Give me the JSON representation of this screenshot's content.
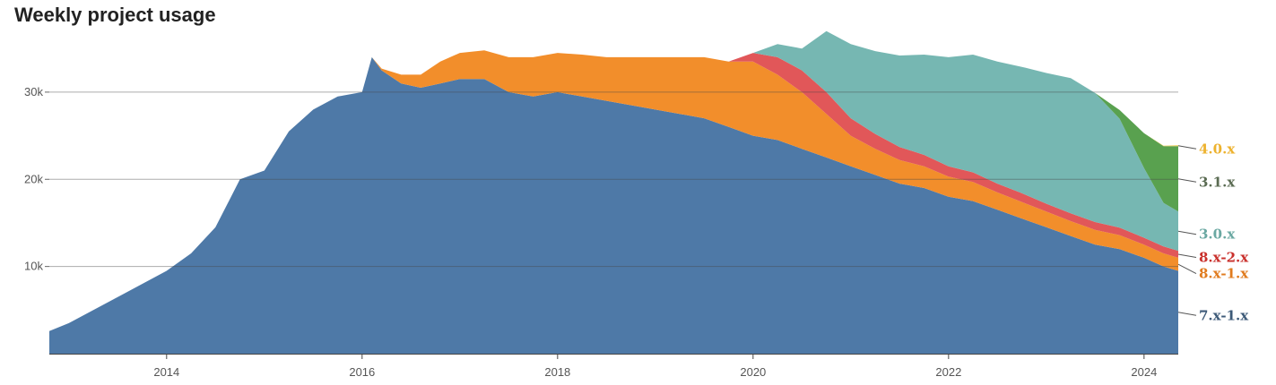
{
  "chart_data": {
    "type": "area",
    "stacked": true,
    "title": "Weekly project usage",
    "xlabel": "",
    "ylabel": "",
    "xlim": [
      2012.8,
      2024.35
    ],
    "ylim": [
      0,
      38000
    ],
    "grid": true,
    "legend_placement": "right (labels at series ends)",
    "x_ticks": [
      2014,
      2016,
      2018,
      2020,
      2022,
      2024
    ],
    "x_tick_labels": [
      "2014",
      "2016",
      "2018",
      "2020",
      "2022",
      "2024"
    ],
    "y_ticks": [
      10000,
      20000,
      30000
    ],
    "y_tick_labels": [
      "10k",
      "20k",
      "30k"
    ],
    "x": [
      2012.8,
      2013.0,
      2013.5,
      2014.0,
      2014.25,
      2014.5,
      2014.75,
      2015.0,
      2015.25,
      2015.5,
      2015.75,
      2016.0,
      2016.1,
      2016.2,
      2016.4,
      2016.6,
      2016.8,
      2017.0,
      2017.25,
      2017.5,
      2017.75,
      2018.0,
      2018.25,
      2018.5,
      2018.75,
      2019.0,
      2019.25,
      2019.5,
      2019.75,
      2020.0,
      2020.25,
      2020.5,
      2020.75,
      2021.0,
      2021.25,
      2021.5,
      2021.75,
      2022.0,
      2022.25,
      2022.5,
      2022.75,
      2023.0,
      2023.25,
      2023.5,
      2023.75,
      2024.0,
      2024.2,
      2024.35
    ],
    "series": [
      {
        "name": "7.x-1.x",
        "color": "#4e79a7",
        "values": [
          2600,
          3500,
          6500,
          9500,
          11500,
          14500,
          20000,
          21000,
          25500,
          28000,
          29500,
          30000,
          34000,
          32500,
          31000,
          30500,
          31000,
          31500,
          31500,
          30000,
          29500,
          30000,
          29500,
          29000,
          28500,
          28000,
          27500,
          27000,
          26000,
          25000,
          24500,
          23500,
          22500,
          21500,
          20500,
          19500,
          19000,
          18000,
          17500,
          16500,
          15500,
          14500,
          13500,
          12500,
          12000,
          11000,
          10000,
          9500
        ]
      },
      {
        "name": "8.x-1.x",
        "color": "#f28e2b",
        "values": [
          0,
          0,
          0,
          0,
          0,
          0,
          0,
          0,
          0,
          0,
          0,
          0,
          0,
          200,
          1000,
          1500,
          2500,
          3000,
          3300,
          4000,
          4500,
          4500,
          4800,
          5000,
          5500,
          6000,
          6500,
          7000,
          7500,
          8500,
          7500,
          6500,
          5000,
          3500,
          3000,
          2700,
          2500,
          2300,
          2200,
          2000,
          1900,
          1800,
          1700,
          1700,
          1600,
          1500,
          1500,
          1500
        ]
      },
      {
        "name": "8.x-2.x",
        "color": "#e15759",
        "values": [
          0,
          0,
          0,
          0,
          0,
          0,
          0,
          0,
          0,
          0,
          0,
          0,
          0,
          0,
          0,
          0,
          0,
          0,
          0,
          0,
          0,
          0,
          0,
          0,
          0,
          0,
          0,
          0,
          0,
          1000,
          2000,
          2500,
          2500,
          2000,
          1700,
          1500,
          1300,
          1200,
          1100,
          1000,
          1000,
          900,
          900,
          900,
          850,
          800,
          800,
          800
        ]
      },
      {
        "name": "3.0.x",
        "color": "#76b7b2",
        "values": [
          0,
          0,
          0,
          0,
          0,
          0,
          0,
          0,
          0,
          0,
          0,
          0,
          0,
          0,
          0,
          0,
          0,
          0,
          0,
          0,
          0,
          0,
          0,
          0,
          0,
          0,
          0,
          0,
          0,
          0,
          1500,
          2500,
          7000,
          8500,
          9500,
          10500,
          11500,
          12500,
          13500,
          14000,
          14500,
          15000,
          15500,
          14800,
          12500,
          8000,
          5000,
          4500
        ]
      },
      {
        "name": "3.1.x",
        "color": "#59a14f",
        "values": [
          0,
          0,
          0,
          0,
          0,
          0,
          0,
          0,
          0,
          0,
          0,
          0,
          0,
          0,
          0,
          0,
          0,
          0,
          0,
          0,
          0,
          0,
          0,
          0,
          0,
          0,
          0,
          0,
          0,
          0,
          0,
          0,
          0,
          0,
          0,
          0,
          0,
          0,
          0,
          0,
          0,
          0,
          0,
          0,
          1000,
          4000,
          6500,
          7500
        ]
      },
      {
        "name": "4.0.x",
        "color": "#edc948",
        "values": [
          0,
          0,
          0,
          0,
          0,
          0,
          0,
          0,
          0,
          0,
          0,
          0,
          0,
          0,
          0,
          0,
          0,
          0,
          0,
          0,
          0,
          0,
          0,
          0,
          0,
          0,
          0,
          0,
          0,
          0,
          0,
          0,
          0,
          0,
          0,
          0,
          0,
          0,
          0,
          0,
          0,
          0,
          0,
          0,
          0,
          0,
          50,
          100
        ]
      }
    ],
    "series_labels": [
      {
        "name": "4.0.x",
        "color": "#edb22e"
      },
      {
        "name": "3.1.x",
        "color": "#5a6b52"
      },
      {
        "name": "3.0.x",
        "color": "#6aa8a2"
      },
      {
        "name": "8.x-2.x",
        "color": "#c9302c"
      },
      {
        "name": "8.x-1.x",
        "color": "#e07b1e"
      },
      {
        "name": "7.x-1.x",
        "color": "#3d5a78"
      }
    ]
  }
}
